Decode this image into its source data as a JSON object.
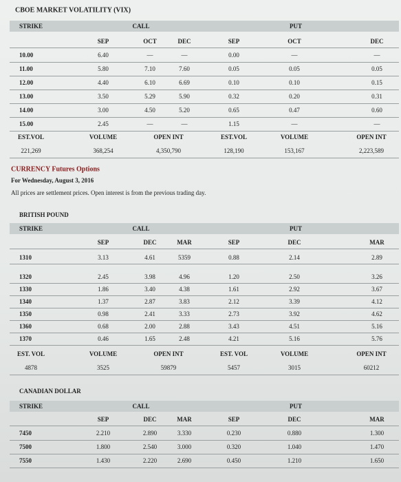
{
  "vix": {
    "title": "CBOE MARKET VOLATILITY (VIX)",
    "header": {
      "strike": "STRIKE",
      "call": "CALL",
      "put": "PUT"
    },
    "months": [
      "SEP",
      "OCT",
      "DEC",
      "SEP",
      "OCT",
      "DEC"
    ],
    "rows": [
      {
        "strike": "10.00",
        "values": [
          "6.40",
          "—",
          "—",
          "0.00",
          "—",
          "—"
        ]
      },
      {
        "strike": "11.00",
        "values": [
          "5.80",
          "7.10",
          "7.60",
          "0.05",
          "0.05",
          "0.05"
        ]
      },
      {
        "strike": "12.00",
        "values": [
          "4.40",
          "6.10",
          "6.69",
          "0.10",
          "0.10",
          "0.15"
        ]
      },
      {
        "strike": "13.00",
        "values": [
          "3.50",
          "5.29",
          "5.90",
          "0.32",
          "0.20",
          "0.31"
        ]
      },
      {
        "strike": "14.00",
        "values": [
          "3.00",
          "4.50",
          "5.20",
          "0.65",
          "0.47",
          "0.60"
        ]
      },
      {
        "strike": "15.00",
        "values": [
          "2.45",
          "—",
          "—",
          "1.15",
          "—",
          "—"
        ]
      }
    ],
    "footer": {
      "labels": [
        "EST.VOL",
        "VOLUME",
        "OPEN INT",
        "EST.VOL",
        "VOLUME",
        "OPEN INT"
      ],
      "values": [
        "221,269",
        "368,254",
        "4,350,790",
        "128,190",
        "153,167",
        "2,223,589"
      ]
    }
  },
  "currency": {
    "title": "CURRENCY Futures Options",
    "date": "For Wednesday, August 3, 2016",
    "note": "All prices are settlement prices. Open interest is from the previous trading day."
  },
  "british_pound": {
    "title": "BRITISH POUND",
    "header": {
      "strike": "STRIKE",
      "call": "CALL",
      "put": "PUT"
    },
    "months": [
      "SEP",
      "DEC",
      "MAR",
      "SEP",
      "DEC",
      "MAR"
    ],
    "rows": [
      {
        "strike": "1310",
        "values": [
          "3.13",
          "4.61",
          "5359",
          "0.88",
          "2.14",
          "2.89"
        ]
      },
      {
        "strike": "1320",
        "values": [
          "2.45",
          "3.98",
          "4.96",
          "1.20",
          "2.50",
          "3.26"
        ]
      },
      {
        "strike": "1330",
        "values": [
          "1.86",
          "3.40",
          "4.38",
          "1.61",
          "2.92",
          "3.67"
        ]
      },
      {
        "strike": "1340",
        "values": [
          "1.37",
          "2.87",
          "3.83",
          "2.12",
          "3.39",
          "4.12"
        ]
      },
      {
        "strike": "1350",
        "values": [
          "0.98",
          "2.41",
          "3.33",
          "2.73",
          "3.92",
          "4.62"
        ]
      },
      {
        "strike": "1360",
        "values": [
          "0.68",
          "2.00",
          "2.88",
          "3.43",
          "4.51",
          "5.16"
        ]
      },
      {
        "strike": "1370",
        "values": [
          "0.46",
          "1.65",
          "2.48",
          "4.21",
          "5.16",
          "5.76"
        ]
      }
    ],
    "footer": {
      "labels": [
        "EST. VOL",
        "VOLUME",
        "OPEN INT",
        "EST. VOL",
        "VOLUME",
        "OPEN INT"
      ],
      "values": [
        "4878",
        "3525",
        "59879",
        "5457",
        "3015",
        "60212"
      ]
    }
  },
  "canadian_dollar": {
    "title": "CANADIAN DOLLAR",
    "header": {
      "strike": "STRIKE",
      "call": "CALL",
      "put": "PUT"
    },
    "months": [
      "SEP",
      "DEC",
      "MAR",
      "SEP",
      "DEC",
      "MAR"
    ],
    "rows": [
      {
        "strike": "7450",
        "values": [
          "2.210",
          "2.890",
          "3.330",
          "0.230",
          "0.880",
          "1.300"
        ]
      },
      {
        "strike": "7500",
        "values": [
          "1.800",
          "2.540",
          "3.000",
          "0.320",
          "1.040",
          "1.470"
        ]
      },
      {
        "strike": "7550",
        "values": [
          "1.430",
          "2.220",
          "2.690",
          "0.450",
          "1.210",
          "1.650"
        ]
      }
    ]
  }
}
